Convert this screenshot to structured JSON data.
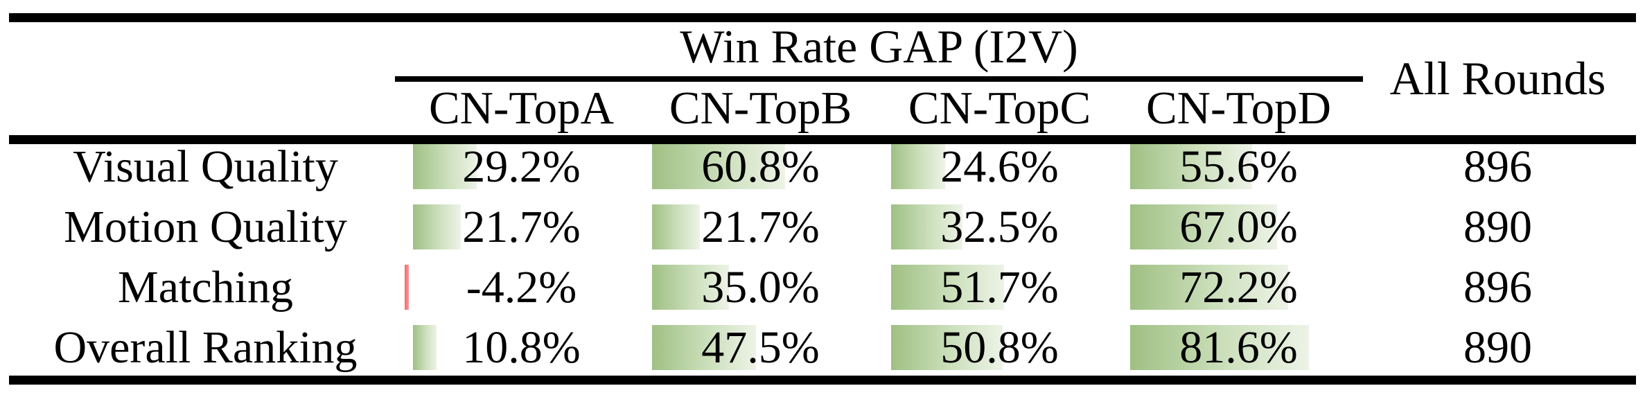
{
  "table": {
    "title": "Win Rate GAP (I2V)",
    "last_column_header": "All Rounds",
    "group_columns": [
      "CN-TopA",
      "CN-TopB",
      "CN-TopC",
      "CN-TopD"
    ],
    "rows": [
      {
        "label": "Visual Quality",
        "cells": [
          {
            "display": "29.2%",
            "value": 29.2
          },
          {
            "display": "60.8%",
            "value": 60.8
          },
          {
            "display": "24.6%",
            "value": 24.6
          },
          {
            "display": "55.6%",
            "value": 55.6
          }
        ],
        "all_rounds": "896"
      },
      {
        "label": "Motion Quality",
        "cells": [
          {
            "display": "21.7%",
            "value": 21.7
          },
          {
            "display": "21.7%",
            "value": 21.7
          },
          {
            "display": "32.5%",
            "value": 32.5
          },
          {
            "display": "67.0%",
            "value": 67.0
          }
        ],
        "all_rounds": "890"
      },
      {
        "label": "Matching",
        "cells": [
          {
            "display": "-4.2%",
            "value": -4.2
          },
          {
            "display": "35.0%",
            "value": 35.0
          },
          {
            "display": "51.7%",
            "value": 51.7
          },
          {
            "display": "72.2%",
            "value": 72.2
          }
        ],
        "all_rounds": "896"
      },
      {
        "label": "Overall Ranking",
        "cells": [
          {
            "display": "10.8%",
            "value": 10.8
          },
          {
            "display": "47.5%",
            "value": 47.5
          },
          {
            "display": "50.8%",
            "value": 50.8
          },
          {
            "display": "81.6%",
            "value": 81.6
          }
        ],
        "all_rounds": "890"
      }
    ],
    "colors": {
      "rule": "#000000",
      "bar_positive_start": "#9fc084",
      "bar_positive_end": "#edf3e7",
      "bar_negative": "#f4696b",
      "text": "#000000",
      "background": "#ffffff"
    }
  }
}
